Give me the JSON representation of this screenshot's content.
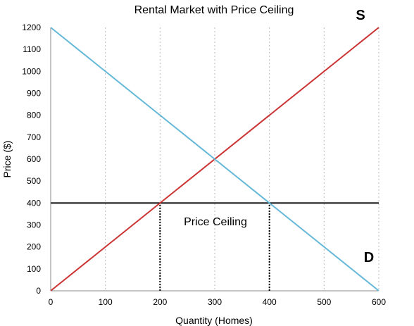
{
  "chart_data": {
    "type": "line",
    "title": "Rental Market with Price Ceiling",
    "xlabel": "Quantity (Homes)",
    "ylabel": "Price ($)",
    "xlim": [
      0,
      600
    ],
    "ylim": [
      0,
      1200
    ],
    "xticks": [
      0,
      100,
      200,
      300,
      400,
      500,
      600
    ],
    "yticks": [
      0,
      100,
      200,
      300,
      400,
      500,
      600,
      700,
      800,
      900,
      1000,
      1100,
      1200
    ],
    "grid": "vertical dotted",
    "series": [
      {
        "name": "S",
        "color": "#cc3333",
        "points": [
          [
            0,
            0
          ],
          [
            600,
            1200
          ]
        ]
      },
      {
        "name": "D",
        "color": "#66b8d8",
        "points": [
          [
            0,
            1200
          ],
          [
            600,
            0
          ]
        ]
      }
    ],
    "price_ceiling": {
      "value": 400,
      "label": "Price Ceiling",
      "color": "#000000"
    },
    "markers": [
      {
        "x": 200,
        "from": 0,
        "to": 400
      },
      {
        "x": 400,
        "from": 0,
        "to": 400
      }
    ]
  }
}
